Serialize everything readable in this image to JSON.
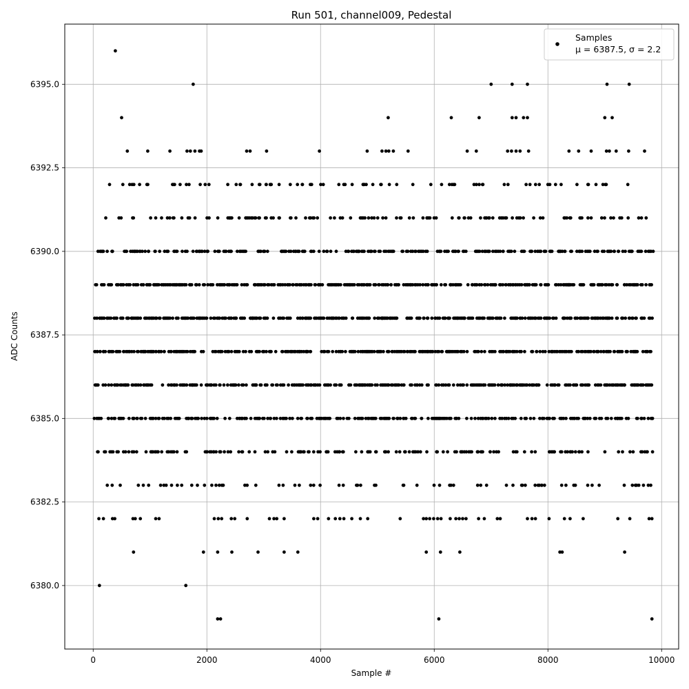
{
  "chart_data": {
    "type": "scatter",
    "title": "Run 501, channel009, Pedestal",
    "xlabel": "Sample #",
    "ylabel": "ADC Counts",
    "xlim": [
      -500,
      10300
    ],
    "ylim": [
      6378.1,
      6396.8
    ],
    "grid": true,
    "x_ticks": [
      0,
      2000,
      4000,
      6000,
      8000,
      10000
    ],
    "x_tick_labels": [
      "0",
      "2000",
      "4000",
      "6000",
      "8000",
      "10000"
    ],
    "y_ticks": [
      6380.0,
      6382.5,
      6385.0,
      6387.5,
      6390.0,
      6392.5,
      6395.0
    ],
    "y_tick_labels": [
      "6380.0",
      "6382.5",
      "6385.0",
      "6387.5",
      "6390.0",
      "6392.5",
      "6395.0"
    ],
    "legend": {
      "position": "top-right",
      "series_label": "Samples",
      "stats_label": "μ = 6387.5, σ = 2.2"
    },
    "marker_color": "#000000",
    "n_samples": 9850,
    "dense_levels": [
      {
        "y": 6384,
        "x_range": [
          0,
          9850
        ]
      },
      {
        "y": 6385,
        "x_range": [
          0,
          9850
        ]
      },
      {
        "y": 6386,
        "x_range": [
          0,
          9850
        ]
      },
      {
        "y": 6387,
        "x_range": [
          0,
          9850
        ]
      },
      {
        "y": 6388,
        "x_range": [
          0,
          9850
        ]
      },
      {
        "y": 6389,
        "x_range": [
          0,
          9850
        ]
      },
      {
        "y": 6390,
        "x_range": [
          0,
          9850
        ]
      },
      {
        "y": 6391,
        "x_range": [
          120,
          9850
        ]
      },
      {
        "y": 6392,
        "x_range": [
          80,
          9850
        ]
      },
      {
        "y": 6383,
        "x_range": [
          0,
          9850
        ]
      }
    ],
    "sparse_points": [
      {
        "x": 390,
        "y": 6396
      },
      {
        "x": 1760,
        "y": 6395
      },
      {
        "x": 7000,
        "y": 6395
      },
      {
        "x": 7370,
        "y": 6395
      },
      {
        "x": 7640,
        "y": 6395
      },
      {
        "x": 9040,
        "y": 6395
      },
      {
        "x": 9430,
        "y": 6395
      },
      {
        "x": 500,
        "y": 6394
      },
      {
        "x": 5190,
        "y": 6394
      },
      {
        "x": 6300,
        "y": 6394
      },
      {
        "x": 6790,
        "y": 6394
      },
      {
        "x": 7370,
        "y": 6394
      },
      {
        "x": 7440,
        "y": 6394
      },
      {
        "x": 7570,
        "y": 6394
      },
      {
        "x": 7640,
        "y": 6394
      },
      {
        "x": 9000,
        "y": 6394
      },
      {
        "x": 9130,
        "y": 6394
      },
      {
        "x": 600,
        "y": 6393
      },
      {
        "x": 960,
        "y": 6393
      },
      {
        "x": 1350,
        "y": 6393
      },
      {
        "x": 1650,
        "y": 6393
      },
      {
        "x": 1710,
        "y": 6393
      },
      {
        "x": 1790,
        "y": 6393
      },
      {
        "x": 1870,
        "y": 6393
      },
      {
        "x": 1900,
        "y": 6393
      },
      {
        "x": 2700,
        "y": 6393
      },
      {
        "x": 2760,
        "y": 6393
      },
      {
        "x": 3050,
        "y": 6393
      },
      {
        "x": 3980,
        "y": 6393
      },
      {
        "x": 4820,
        "y": 6393
      },
      {
        "x": 5080,
        "y": 6393
      },
      {
        "x": 5150,
        "y": 6393
      },
      {
        "x": 5200,
        "y": 6393
      },
      {
        "x": 5280,
        "y": 6393
      },
      {
        "x": 5540,
        "y": 6393
      },
      {
        "x": 6580,
        "y": 6393
      },
      {
        "x": 6740,
        "y": 6393
      },
      {
        "x": 7290,
        "y": 6393
      },
      {
        "x": 7360,
        "y": 6393
      },
      {
        "x": 7440,
        "y": 6393
      },
      {
        "x": 7510,
        "y": 6393
      },
      {
        "x": 7660,
        "y": 6393
      },
      {
        "x": 8370,
        "y": 6393
      },
      {
        "x": 8540,
        "y": 6393
      },
      {
        "x": 8760,
        "y": 6393
      },
      {
        "x": 9030,
        "y": 6393
      },
      {
        "x": 9080,
        "y": 6393
      },
      {
        "x": 9200,
        "y": 6393
      },
      {
        "x": 9420,
        "y": 6393
      },
      {
        "x": 9700,
        "y": 6393
      },
      {
        "x": 100,
        "y": 6382
      },
      {
        "x": 180,
        "y": 6382
      },
      {
        "x": 340,
        "y": 6382
      },
      {
        "x": 380,
        "y": 6382
      },
      {
        "x": 700,
        "y": 6382
      },
      {
        "x": 740,
        "y": 6382
      },
      {
        "x": 830,
        "y": 6382
      },
      {
        "x": 1100,
        "y": 6382
      },
      {
        "x": 1160,
        "y": 6382
      },
      {
        "x": 2130,
        "y": 6382
      },
      {
        "x": 2200,
        "y": 6382
      },
      {
        "x": 2260,
        "y": 6382
      },
      {
        "x": 2430,
        "y": 6382
      },
      {
        "x": 2490,
        "y": 6382
      },
      {
        "x": 2710,
        "y": 6382
      },
      {
        "x": 3100,
        "y": 6382
      },
      {
        "x": 3180,
        "y": 6382
      },
      {
        "x": 3230,
        "y": 6382
      },
      {
        "x": 3360,
        "y": 6382
      },
      {
        "x": 3880,
        "y": 6382
      },
      {
        "x": 3950,
        "y": 6382
      },
      {
        "x": 4140,
        "y": 6382
      },
      {
        "x": 4260,
        "y": 6382
      },
      {
        "x": 4340,
        "y": 6382
      },
      {
        "x": 4410,
        "y": 6382
      },
      {
        "x": 4550,
        "y": 6382
      },
      {
        "x": 4700,
        "y": 6382
      },
      {
        "x": 4830,
        "y": 6382
      },
      {
        "x": 5400,
        "y": 6382
      },
      {
        "x": 5810,
        "y": 6382
      },
      {
        "x": 5860,
        "y": 6382
      },
      {
        "x": 5920,
        "y": 6382
      },
      {
        "x": 5990,
        "y": 6382
      },
      {
        "x": 6060,
        "y": 6382
      },
      {
        "x": 6120,
        "y": 6382
      },
      {
        "x": 6280,
        "y": 6382
      },
      {
        "x": 6380,
        "y": 6382
      },
      {
        "x": 6440,
        "y": 6382
      },
      {
        "x": 6500,
        "y": 6382
      },
      {
        "x": 6560,
        "y": 6382
      },
      {
        "x": 6780,
        "y": 6382
      },
      {
        "x": 6880,
        "y": 6382
      },
      {
        "x": 7110,
        "y": 6382
      },
      {
        "x": 7160,
        "y": 6382
      },
      {
        "x": 7640,
        "y": 6382
      },
      {
        "x": 7720,
        "y": 6382
      },
      {
        "x": 7780,
        "y": 6382
      },
      {
        "x": 8020,
        "y": 6382
      },
      {
        "x": 8290,
        "y": 6382
      },
      {
        "x": 8390,
        "y": 6382
      },
      {
        "x": 8620,
        "y": 6382
      },
      {
        "x": 9230,
        "y": 6382
      },
      {
        "x": 9440,
        "y": 6382
      },
      {
        "x": 9780,
        "y": 6382
      },
      {
        "x": 9830,
        "y": 6382
      },
      {
        "x": 710,
        "y": 6381
      },
      {
        "x": 1940,
        "y": 6381
      },
      {
        "x": 2190,
        "y": 6381
      },
      {
        "x": 2440,
        "y": 6381
      },
      {
        "x": 2900,
        "y": 6381
      },
      {
        "x": 3360,
        "y": 6381
      },
      {
        "x": 3600,
        "y": 6381
      },
      {
        "x": 5860,
        "y": 6381
      },
      {
        "x": 6110,
        "y": 6381
      },
      {
        "x": 6450,
        "y": 6381
      },
      {
        "x": 8210,
        "y": 6381
      },
      {
        "x": 8250,
        "y": 6381
      },
      {
        "x": 9350,
        "y": 6381
      },
      {
        "x": 110,
        "y": 6380
      },
      {
        "x": 1630,
        "y": 6380
      },
      {
        "x": 2190,
        "y": 6379
      },
      {
        "x": 2240,
        "y": 6379
      },
      {
        "x": 6080,
        "y": 6379
      },
      {
        "x": 9830,
        "y": 6379
      }
    ]
  }
}
